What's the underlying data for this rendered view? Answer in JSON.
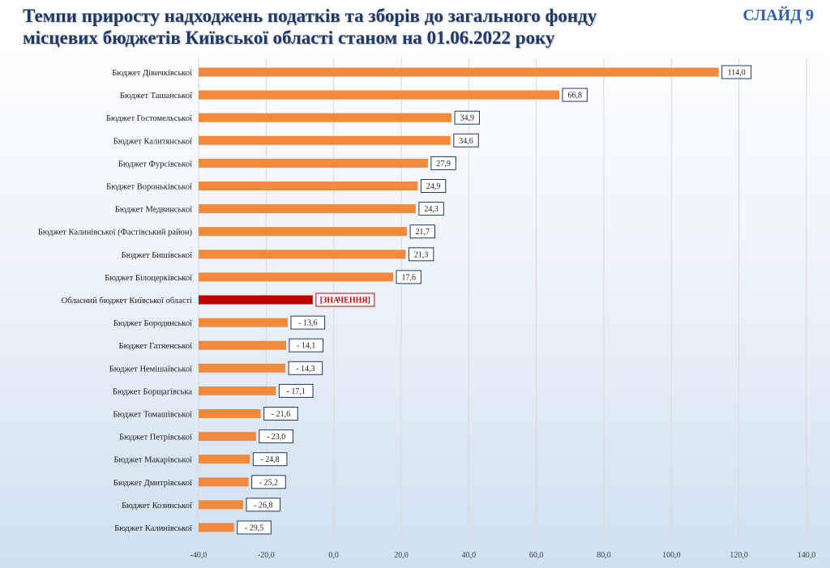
{
  "header": {
    "title_line1": "Темпи приросту надходжень податків та зборів до загального фонду",
    "title_line2": "місцевих бюджетів Київської області станом на 01.06.2022 року",
    "slide": "СЛАЙД 9"
  },
  "colors": {
    "bar": "#f08a3c",
    "highlight_bar": "#c00000",
    "title": "#1f3864",
    "label_border": "#1f3864"
  },
  "chart_data": {
    "type": "bar",
    "orientation": "horizontal",
    "xlim": [
      -40,
      140
    ],
    "x_ticks": [
      "-40,0",
      "-20,0",
      "0,0",
      "20,0",
      "40,0",
      "60,0",
      "80,0",
      "100,0",
      "120,0",
      "140,0"
    ],
    "grid": "vertical",
    "categories": [
      "Бюджет Дівичківської",
      "Бюджет Ташанської",
      "Бюджет Гостомельської",
      "Бюджет Калитянської",
      "Бюджет Фурсівської",
      "Бюджет Вороньківської",
      "Бюджет Медвинської",
      "Бюджет Калинівської  (Фастівський район)",
      "Бюджет Бишівської",
      "Бюджет Білоцерківської",
      "Обласний бюджет Київської області",
      "Бюджет Бородянської",
      "Бюджет Гатненської",
      "Бюджет Немішаївської",
      "Бюджет Борщагівська",
      "Бюджет Томашівської",
      "Бюджет Петрівської",
      "Бюджет Макарівської",
      "Бюджет Дмитрівської",
      "Бюджет Козинської",
      "Бюджет Калинівської"
    ],
    "values": [
      114.0,
      66.8,
      34.9,
      34.6,
      27.9,
      24.9,
      24.3,
      21.7,
      21.3,
      17.6,
      -6.2,
      -13.6,
      -14.1,
      -14.3,
      -17.1,
      -21.6,
      -23.0,
      -24.8,
      -25.2,
      -26.8,
      -29.5
    ],
    "data_labels": [
      "114,0",
      "66,8",
      "34,9",
      "34,6",
      "27,9",
      "24,9",
      "24,3",
      "21,7",
      "21,3",
      "17,6",
      "[ЗНАЧЕННЯ]",
      "- 13,6",
      "- 14,1",
      "- 14,3",
      "- 17,1",
      "- 21,6",
      "- 23,0",
      "- 24,8",
      "- 25,2",
      "- 26,8",
      "- 29,5"
    ],
    "highlight_index": 10
  }
}
